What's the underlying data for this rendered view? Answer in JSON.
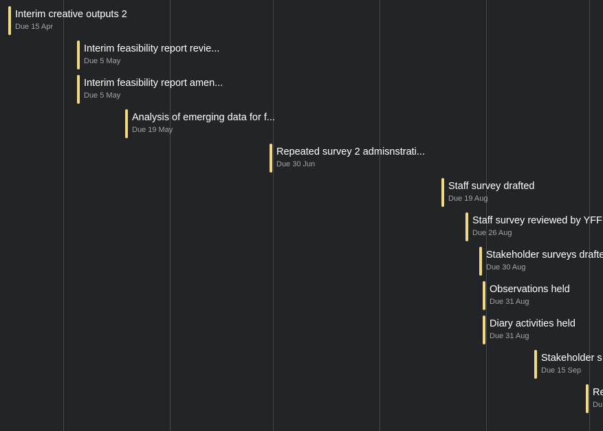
{
  "colors": {
    "background": "#232427",
    "gridline": "#46474b",
    "milestone_bar": "#f2d97a",
    "title_text": "#ffffff",
    "due_text": "#a3a4a7"
  },
  "milestones": [
    {
      "title": "Interim creative outputs 2",
      "due": "Due 15 Apr"
    },
    {
      "title": "Interim feasibility report revie...",
      "due": "Due 5 May"
    },
    {
      "title": "Interim feasibility report amen...",
      "due": "Due 5 May"
    },
    {
      "title": "Analysis of emerging data for f...",
      "due": "Due 19 May"
    },
    {
      "title": "Repeated survey 2 admisnstrati...",
      "due": "Due 30 Jun"
    },
    {
      "title": "Staff survey drafted",
      "due": "Due 19 Aug"
    },
    {
      "title": "Staff survey reviewed by YFF",
      "due": "Due 26 Aug"
    },
    {
      "title": "Stakeholder surveys drafted",
      "due": "Due 30 Aug"
    },
    {
      "title": "Observations held",
      "due": "Due 31 Aug"
    },
    {
      "title": "Diary activities held",
      "due": "Due 31 Aug"
    },
    {
      "title": "Stakeholder s",
      "due": "Due 15 Sep"
    },
    {
      "title": "Re",
      "due": "Du"
    }
  ]
}
